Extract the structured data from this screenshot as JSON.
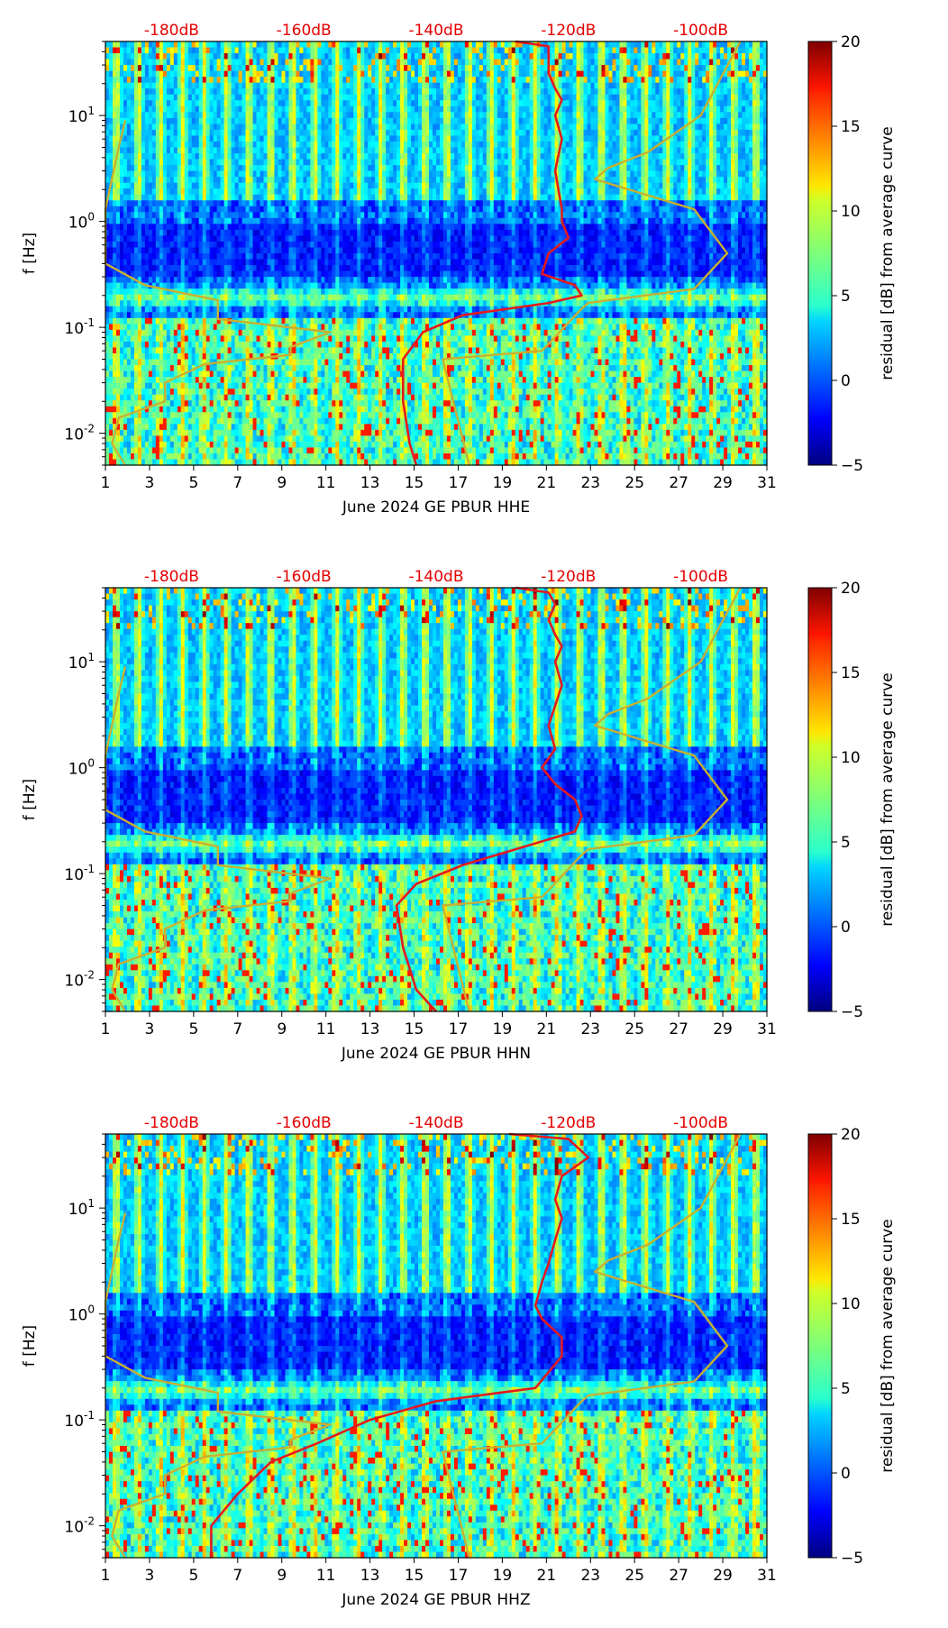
{
  "chart_data": [
    {
      "type": "heatmap",
      "title": "",
      "xlabel": "June 2024 GE PBUR  HHE",
      "ylabel": "f [Hz]",
      "x_ticks": [
        "1",
        "3",
        "5",
        "7",
        "9",
        "11",
        "13",
        "15",
        "17",
        "19",
        "21",
        "23",
        "25",
        "27",
        "29",
        "31"
      ],
      "xlim": [
        1,
        31
      ],
      "y_scale": "log",
      "ylim": [
        0.005,
        50
      ],
      "y_ticks": [
        {
          "exp": "-2"
        },
        {
          "exp": "-1"
        },
        {
          "exp": "0"
        },
        {
          "exp": "1"
        }
      ],
      "y_tick_base": "10",
      "top_axis_ticks": [
        "-180dB",
        "-160dB",
        "-140dB",
        "-120dB",
        "-100dB"
      ],
      "top_axis_range_db": [
        -190,
        -90
      ],
      "colorbar": {
        "label": "residual [dB] from average curve",
        "range": [
          -5,
          20
        ],
        "ticks": [
          "-5",
          "0",
          "5",
          "10",
          "15",
          "20"
        ]
      },
      "colors": {
        "psd_curve": "#e41a1c",
        "percentile_curve": "#c8b030",
        "top_axis_text": "#e60000"
      },
      "series": [
        {
          "name": "",
          "color": "#e41a1c",
          "db": [
            -128,
            -123,
            -123,
            -123,
            -122,
            -121,
            -122,
            -121,
            -122,
            -121,
            -121,
            -120,
            -123,
            -124,
            -119,
            -118,
            -123,
            -136,
            -142,
            -145,
            -145,
            -144,
            -143
          ],
          "f": [
            50,
            45,
            35,
            25,
            18,
            14,
            10,
            6,
            3,
            1.3,
            1.0,
            0.7,
            0.5,
            0.32,
            0.25,
            0.2,
            0.17,
            0.13,
            0.09,
            0.05,
            0.02,
            0.008,
            0.005
          ]
        },
        {
          "name": "",
          "color": "#c8b030",
          "db": [
            -187,
            -189,
            -188,
            -181,
            -181,
            -175,
            -162,
            -162,
            -156,
            -173,
            -173,
            -184,
            -190,
            -190,
            -188,
            -187
          ],
          "f": [
            0.005,
            0.008,
            0.014,
            0.02,
            0.03,
            0.045,
            0.055,
            0.065,
            0.09,
            0.12,
            0.18,
            0.25,
            0.4,
            1.3,
            5,
            9
          ]
        },
        {
          "name": "",
          "color": "#c8b030",
          "db": [
            -135,
            -139,
            -124,
            -118,
            -117,
            -101,
            -96,
            -101,
            -116,
            -114,
            -108,
            -100,
            -94
          ],
          "f": [
            0.005,
            0.05,
            0.06,
            0.15,
            0.17,
            0.23,
            0.5,
            1.3,
            2.5,
            3.2,
            4.5,
            10,
            50
          ]
        }
      ]
    },
    {
      "type": "heatmap",
      "title": "",
      "xlabel": "June 2024 GE PBUR  HHN",
      "ylabel": "f [Hz]",
      "x_ticks": [
        "1",
        "3",
        "5",
        "7",
        "9",
        "11",
        "13",
        "15",
        "17",
        "19",
        "21",
        "23",
        "25",
        "27",
        "29",
        "31"
      ],
      "xlim": [
        1,
        31
      ],
      "y_scale": "log",
      "ylim": [
        0.005,
        50
      ],
      "y_ticks": [
        {
          "exp": "-2"
        },
        {
          "exp": "-1"
        },
        {
          "exp": "0"
        },
        {
          "exp": "1"
        }
      ],
      "y_tick_base": "10",
      "top_axis_ticks": [
        "-180dB",
        "-160dB",
        "-140dB",
        "-120dB",
        "-100dB"
      ],
      "top_axis_range_db": [
        -190,
        -90
      ],
      "colorbar": {
        "label": "residual [dB] from average curve",
        "range": [
          -5,
          20
        ],
        "ticks": [
          "-5",
          "0",
          "5",
          "10",
          "15",
          "20"
        ]
      },
      "colors": {
        "psd_curve": "#e41a1c",
        "percentile_curve": "#c8b030",
        "top_axis_text": "#e60000"
      },
      "series": [
        {
          "name": "",
          "color": "#e41a1c",
          "db": [
            -128,
            -123,
            -122,
            -123,
            -122,
            -121,
            -122,
            -121,
            -123,
            -122,
            -124,
            -122,
            -119,
            -118,
            -119,
            -136,
            -143,
            -146,
            -145,
            -143,
            -140
          ],
          "f": [
            50,
            45,
            35,
            25,
            18,
            14,
            10,
            6,
            2.5,
            1.5,
            1.0,
            0.7,
            0.5,
            0.35,
            0.25,
            0.12,
            0.08,
            0.05,
            0.02,
            0.008,
            0.005
          ]
        },
        {
          "name": "",
          "color": "#c8b030",
          "db": [
            -187,
            -189,
            -188,
            -181,
            -181,
            -175,
            -162,
            -162,
            -156,
            -173,
            -173,
            -184,
            -190,
            -190,
            -188,
            -187
          ],
          "f": [
            0.005,
            0.008,
            0.014,
            0.02,
            0.03,
            0.045,
            0.055,
            0.065,
            0.09,
            0.12,
            0.18,
            0.25,
            0.4,
            1.3,
            5,
            9
          ]
        },
        {
          "name": "",
          "color": "#c8b030",
          "db": [
            -135,
            -139,
            -124,
            -118,
            -117,
            -101,
            -96,
            -101,
            -116,
            -114,
            -108,
            -100,
            -94
          ],
          "f": [
            0.005,
            0.05,
            0.06,
            0.15,
            0.17,
            0.23,
            0.5,
            1.3,
            2.5,
            3.2,
            4.5,
            10,
            50
          ]
        }
      ]
    },
    {
      "type": "heatmap",
      "title": "",
      "xlabel": "June 2024 GE PBUR  HHZ",
      "ylabel": "f [Hz]",
      "x_ticks": [
        "1",
        "3",
        "5",
        "7",
        "9",
        "11",
        "13",
        "15",
        "17",
        "19",
        "21",
        "23",
        "25",
        "27",
        "29",
        "31"
      ],
      "xlim": [
        1,
        31
      ],
      "y_scale": "log",
      "ylim": [
        0.005,
        50
      ],
      "y_ticks": [
        {
          "exp": "-2"
        },
        {
          "exp": "-1"
        },
        {
          "exp": "0"
        },
        {
          "exp": "1"
        }
      ],
      "y_tick_base": "10",
      "top_axis_ticks": [
        "-180dB",
        "-160dB",
        "-140dB",
        "-120dB",
        "-100dB"
      ],
      "top_axis_range_db": [
        -190,
        -90
      ],
      "colorbar": {
        "label": "residual [dB] from average curve",
        "range": [
          -5,
          20
        ],
        "ticks": [
          "-5",
          "0",
          "5",
          "10",
          "15",
          "20"
        ]
      },
      "colors": {
        "psd_curve": "#e41a1c",
        "percentile_curve": "#c8b030",
        "top_axis_text": "#e60000"
      },
      "series": [
        {
          "name": "",
          "color": "#e41a1c",
          "db": [
            -129,
            -120,
            -117,
            -121,
            -122,
            -121,
            -122,
            -123,
            -124,
            -125,
            -124,
            -121,
            -121,
            -125,
            -140,
            -150,
            -158,
            -165,
            -170,
            -174,
            -174
          ],
          "f": [
            50,
            45,
            30,
            20,
            12,
            8,
            5,
            3,
            2,
            1.2,
            0.9,
            0.6,
            0.4,
            0.2,
            0.15,
            0.1,
            0.06,
            0.04,
            0.02,
            0.01,
            0.005
          ]
        },
        {
          "name": "",
          "color": "#c8b030",
          "db": [
            -187,
            -189,
            -188,
            -181,
            -181,
            -175,
            -162,
            -162,
            -156,
            -173,
            -173,
            -184,
            -190,
            -190,
            -188,
            -187
          ],
          "f": [
            0.005,
            0.008,
            0.014,
            0.02,
            0.03,
            0.045,
            0.055,
            0.065,
            0.09,
            0.12,
            0.18,
            0.25,
            0.4,
            1.3,
            5,
            9
          ]
        },
        {
          "name": "",
          "color": "#c8b030",
          "db": [
            -135,
            -139,
            -124,
            -118,
            -117,
            -101,
            -96,
            -101,
            -116,
            -114,
            -108,
            -100,
            -94
          ],
          "f": [
            0.005,
            0.05,
            0.06,
            0.15,
            0.17,
            0.23,
            0.5,
            1.3,
            2.5,
            3.2,
            4.5,
            10,
            50
          ]
        }
      ]
    }
  ]
}
